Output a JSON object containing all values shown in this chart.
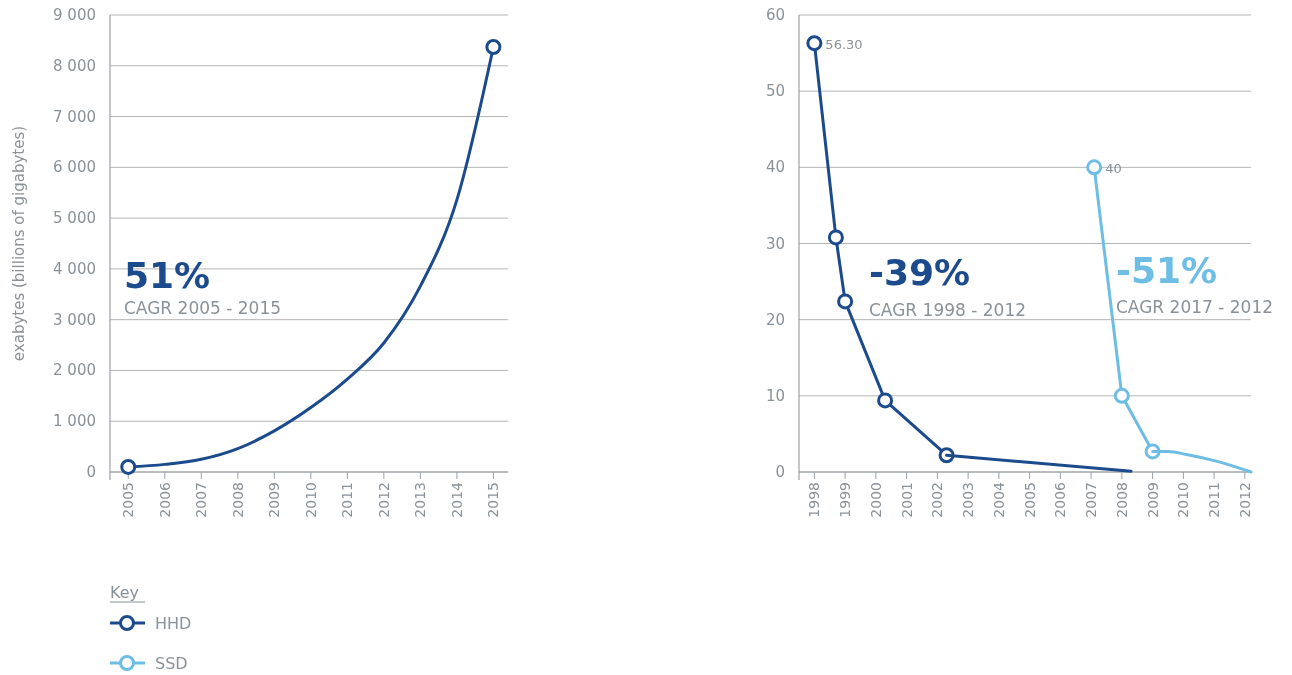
{
  "chart_data": [
    {
      "type": "line",
      "ylabel": "exabytes (billions of gigabytes)",
      "annotations": [
        "51%",
        "CAGR 2005 - 2015"
      ],
      "xlim": [
        2004.5,
        2015.4
      ],
      "xticks": [
        2005,
        2006,
        2007,
        2008,
        2009,
        2010,
        2011,
        2012,
        2013,
        2014,
        2015
      ],
      "ylim": [
        0,
        9000
      ],
      "yticks": [
        0,
        {
          "value": 1000,
          "label": "1 000"
        },
        {
          "value": 2000,
          "label": "2 000"
        },
        {
          "value": 3000,
          "label": "3 000"
        },
        {
          "value": 4000,
          "label": "4 000"
        },
        {
          "value": 5000,
          "label": "5 000"
        },
        {
          "value": 6000,
          "label": "6 000"
        },
        {
          "value": 7000,
          "label": "7 000"
        },
        {
          "value": 8000,
          "label": "8 000"
        },
        {
          "value": 9000,
          "label": "9 000"
        }
      ],
      "grid": "y",
      "legend": false,
      "series": [
        {
          "color": "#1b4b8c",
          "marker": "none",
          "x": [
            2005,
            2006,
            2007,
            2008,
            2009,
            2010,
            2011,
            2012,
            2013,
            2014,
            2015
          ],
          "values": [
            100,
            150,
            250,
            460,
            810,
            1270,
            1830,
            2540,
            3660,
            5360,
            8370
          ]
        },
        {
          "type": "scatter",
          "color": "#1b4b8c",
          "marker": "circle",
          "x": [
            2005,
            2015
          ],
          "values": [
            100,
            8370
          ]
        }
      ]
    },
    {
      "type": "line",
      "legend_title": "Key",
      "annotations": [
        "-39%",
        "CAGR 1998 - 2012",
        "-51%",
        "CAGR 2017 - 2012"
      ],
      "xlim": [
        1997.5,
        2012.2
      ],
      "xticks": [
        1998,
        1999,
        2000,
        2001,
        2002,
        2003,
        2004,
        2005,
        2006,
        2007,
        2008,
        2009,
        2010,
        2011,
        2012
      ],
      "ylim": [
        0,
        60
      ],
      "yticks": [
        0,
        10,
        20,
        30,
        40,
        50,
        60
      ],
      "grid": "y",
      "legend": "bottom left",
      "series": [
        {
          "name": "HHD",
          "color": "#1b4b8c",
          "marker": "circle",
          "x": [
            1998.0,
            1998.7,
            1999.0,
            2000.3,
            2002.3
          ],
          "values": [
            56.3,
            30.8,
            22.4,
            9.4,
            2.2
          ],
          "value_labels": [
            "56.30",
            null,
            null,
            null,
            null
          ]
        },
        {
          "color": "#1b4b8c",
          "marker": "none",
          "x": [
            2002.3,
            2008.3
          ],
          "values": [
            2.2,
            0.1
          ]
        },
        {
          "name": "SSD",
          "color": "#6dbde4",
          "marker": "circle",
          "x": [
            2007.1,
            2008.0,
            2009.0
          ],
          "values": [
            40,
            10,
            2.7
          ],
          "value_labels": [
            "40",
            null,
            null
          ]
        },
        {
          "color": "#6dbde4",
          "marker": "none",
          "x": [
            2009.0,
            2009.5,
            2010.1,
            2011.1,
            2012.2
          ],
          "values": [
            2.7,
            2.7,
            2.3,
            1.4,
            0
          ]
        }
      ]
    }
  ]
}
